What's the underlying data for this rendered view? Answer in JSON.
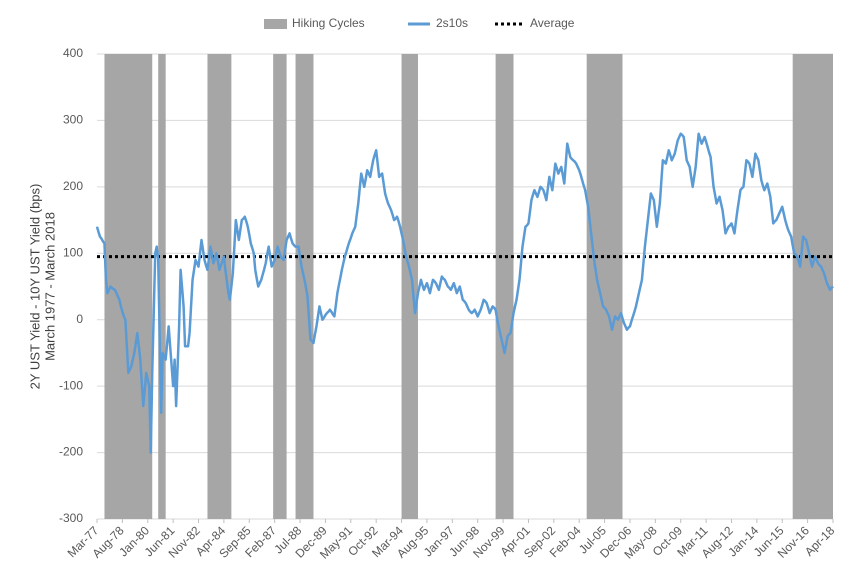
{
  "chart_data": {
    "type": "line",
    "ylabel": [
      "2Y UST Yield - 10Y UST Yield (bps)",
      "March 1977 - March 2018"
    ],
    "categories": [
      "Mar-77",
      null,
      null,
      null,
      null,
      null,
      null,
      null,
      null,
      null,
      null,
      null,
      null,
      null,
      null,
      null,
      null,
      "Aug-78",
      null,
      null,
      null,
      null,
      null,
      null,
      null,
      null,
      null,
      null,
      null,
      null,
      null,
      null,
      null,
      null,
      "Jan-80",
      null,
      null,
      null,
      null,
      null,
      null,
      null,
      null,
      null,
      null,
      null,
      null,
      null,
      null,
      null,
      null,
      "Jun-81",
      null,
      null,
      null,
      null,
      null,
      null,
      null,
      null,
      null,
      null,
      null,
      null,
      null,
      null,
      null,
      null,
      "Nov-82",
      null,
      null,
      null,
      null,
      null,
      null,
      null,
      null,
      null,
      null,
      null,
      null,
      null,
      null,
      null,
      null,
      "Apr-84",
      null,
      null,
      null,
      null,
      null,
      null,
      null,
      null,
      null,
      null,
      null,
      null,
      null,
      null,
      null,
      null,
      "Sep-85",
      null,
      null,
      null,
      null,
      null,
      null,
      null,
      null,
      null,
      null,
      null,
      null,
      null,
      null,
      null,
      null,
      "Feb-87",
      null,
      null,
      null,
      null,
      null,
      null,
      null,
      null,
      null,
      null,
      null,
      null,
      null,
      null,
      null,
      null,
      "Jul-88",
      null,
      null,
      null,
      null,
      null,
      null,
      null,
      null,
      null,
      null,
      null,
      null,
      null,
      null,
      null,
      null,
      "Dec-89",
      null,
      null,
      null,
      null,
      null,
      null,
      null,
      null,
      null,
      null,
      null,
      null,
      null,
      null,
      null,
      null,
      "May-91",
      null,
      null,
      null,
      null,
      null,
      null,
      null,
      null,
      null,
      null,
      null,
      null,
      null,
      null,
      null,
      null,
      "Oct-92",
      null,
      null,
      null,
      null,
      null,
      null,
      null,
      null,
      null,
      null,
      null,
      null,
      null,
      null,
      null,
      null,
      "Mar-94",
      null,
      null,
      null,
      null,
      null,
      null,
      null,
      null,
      null,
      null,
      null,
      null,
      null,
      null,
      null,
      null,
      "Aug-95",
      null,
      null,
      null,
      null,
      null,
      null,
      null,
      null,
      null,
      null,
      null,
      null,
      null,
      null,
      null,
      null,
      "Jan-97",
      null,
      null,
      null,
      null,
      null,
      null,
      null,
      null,
      null,
      null,
      null,
      null,
      null,
      null,
      null,
      null,
      "Jun-98",
      null,
      null,
      null,
      null,
      null,
      null,
      null,
      null,
      null,
      null,
      null,
      null,
      null,
      null,
      null,
      null,
      "Nov-99",
      null,
      null,
      null,
      null,
      null,
      null,
      null,
      null,
      null,
      null,
      null,
      null,
      null,
      null,
      null,
      null,
      "Apr-01",
      null,
      null,
      null,
      null,
      null,
      null,
      null,
      null,
      null,
      null,
      null,
      null,
      null,
      null,
      null,
      null,
      "Sep-02",
      null,
      null,
      null,
      null,
      null,
      null,
      null,
      null,
      null,
      null,
      null,
      null,
      null,
      null,
      null,
      null,
      "Feb-04",
      null,
      null,
      null,
      null,
      null,
      null,
      null,
      null,
      null,
      null,
      null,
      null,
      null,
      null,
      null,
      null,
      "Jul-05",
      null,
      null,
      null,
      null,
      null,
      null,
      null,
      null,
      null,
      null,
      null,
      null,
      null,
      null,
      null,
      null,
      "Dec-06",
      null,
      null,
      null,
      null,
      null,
      null,
      null,
      null,
      null,
      null,
      null,
      null,
      null,
      null,
      null,
      null,
      "May-08",
      null,
      null,
      null,
      null,
      null,
      null,
      null,
      null,
      null,
      null,
      null,
      null,
      null,
      null,
      null,
      null,
      "Oct-09",
      null,
      null,
      null,
      null,
      null,
      null,
      null,
      null,
      null,
      null,
      null,
      null,
      null,
      null,
      null,
      null,
      "Mar-11",
      null,
      null,
      null,
      null,
      null,
      null,
      null,
      null,
      null,
      null,
      null,
      null,
      null,
      null,
      null,
      null,
      "Aug-12",
      null,
      null,
      null,
      null,
      null,
      null,
      null,
      null,
      null,
      null,
      null,
      null,
      null,
      null,
      null,
      null,
      "Jan-14",
      null,
      null,
      null,
      null,
      null,
      null,
      null,
      null,
      null,
      null,
      null,
      null,
      null,
      null,
      null,
      null,
      "Jun-15",
      null,
      null,
      null,
      null,
      null,
      null,
      null,
      null,
      null,
      null,
      null,
      null,
      null,
      null,
      null,
      null,
      "Nov-16",
      null,
      null,
      null,
      null,
      null,
      null,
      null,
      null,
      null,
      null,
      null,
      null,
      null,
      null,
      null,
      null,
      "Apr-18"
    ],
    "series": [
      {
        "name": "2s10s",
        "color": "#5b9bd5",
        "values": [
          140,
          132,
          125,
          122,
          118,
          115,
          60,
          40,
          45,
          50,
          48,
          46,
          45,
          40,
          35,
          30,
          20,
          12,
          5,
          0,
          -40,
          -80,
          -75,
          -70,
          -60,
          -50,
          -35,
          -20,
          -40,
          -60,
          -95,
          -130,
          -105,
          -80,
          -90,
          -100,
          -200,
          -80,
          10,
          100,
          110,
          90,
          -25,
          -140,
          -50,
          -55,
          -60,
          -35,
          -10,
          -40,
          -70,
          -100,
          -60,
          -130,
          -70,
          -10,
          75,
          48,
          20,
          -40,
          -40,
          -40,
          -20,
          20,
          60,
          75,
          90,
          85,
          80,
          100,
          120,
          105,
          90,
          82,
          75,
          92,
          110,
          98,
          85,
          92,
          100,
          88,
          75,
          82,
          88,
          95,
          75,
          58,
          40,
          30,
          50,
          70,
          110,
          150,
          135,
          120,
          135,
          150,
          152,
          155,
          148,
          140,
          128,
          115,
          108,
          100,
          75,
          62,
          50,
          55,
          60,
          68,
          76,
          85,
          98,
          110,
          95,
          80,
          85,
          90,
          100,
          110,
          102,
          95,
          92,
          90,
          105,
          120,
          125,
          130,
          122,
          115,
          112,
          110,
          110,
          110,
          95,
          80,
          70,
          60,
          48,
          35,
          2,
          -30,
          -32,
          -35,
          -22,
          -10,
          5,
          20,
          10,
          0,
          3,
          7,
          10,
          12,
          15,
          12,
          8,
          5,
          22,
          40,
          52,
          63,
          75,
          85,
          95,
          102,
          110,
          117,
          123,
          130,
          135,
          140,
          158,
          175,
          198,
          220,
          210,
          200,
          212,
          225,
          220,
          215,
          228,
          240,
          248,
          255,
          235,
          215,
          218,
          220,
          205,
          190,
          182,
          175,
          170,
          165,
          158,
          150,
          152,
          155,
          148,
          140,
          130,
          120,
          108,
          95,
          88,
          80,
          70,
          60,
          35,
          10,
          25,
          40,
          50,
          60,
          52,
          45,
          50,
          55,
          48,
          40,
          50,
          60,
          58,
          55,
          50,
          45,
          55,
          65,
          62,
          60,
          55,
          50,
          48,
          45,
          50,
          55,
          48,
          40,
          45,
          50,
          40,
          30,
          28,
          25,
          20,
          15,
          12,
          10,
          12,
          15,
          10,
          5,
          10,
          15,
          22,
          30,
          28,
          25,
          18,
          10,
          15,
          20,
          18,
          15,
          2,
          -10,
          -20,
          -30,
          -40,
          -50,
          -38,
          -25,
          -22,
          -20,
          -5,
          10,
          20,
          30,
          45,
          60,
          85,
          110,
          125,
          140,
          142,
          145,
          162,
          180,
          188,
          195,
          190,
          185,
          192,
          200,
          198,
          195,
          188,
          180,
          198,
          215,
          205,
          195,
          215,
          235,
          228,
          220,
          225,
          230,
          218,
          205,
          235,
          265,
          255,
          245,
          242,
          240,
          238,
          235,
          230,
          225,
          218,
          210,
          202,
          195,
          182,
          170,
          150,
          130,
          110,
          90,
          75,
          60,
          50,
          40,
          30,
          20,
          18,
          15,
          10,
          5,
          -5,
          -15,
          -5,
          5,
          2,
          0,
          5,
          10,
          2,
          -5,
          -10,
          -15,
          -12,
          -10,
          -2,
          5,
          12,
          20,
          30,
          40,
          50,
          60,
          85,
          110,
          130,
          150,
          170,
          190,
          185,
          180,
          160,
          140,
          158,
          175,
          208,
          240,
          238,
          235,
          245,
          255,
          248,
          240,
          245,
          250,
          260,
          270,
          275,
          280,
          278,
          275,
          258,
          240,
          235,
          230,
          215,
          200,
          215,
          230,
          255,
          280,
          272,
          265,
          270,
          275,
          268,
          260,
          252,
          245,
          222,
          200,
          188,
          175,
          180,
          185,
          175,
          165,
          148,
          130,
          135,
          140,
          142,
          145,
          138,
          130,
          148,
          165,
          180,
          195,
          198,
          200,
          220,
          240,
          238,
          235,
          225,
          215,
          232,
          250,
          245,
          240,
          225,
          210,
          202,
          195,
          200,
          205,
          195,
          185,
          165,
          145,
          148,
          150,
          155,
          160,
          165,
          170,
          160,
          150,
          142,
          135,
          130,
          125,
          112,
          100,
          98,
          95,
          88,
          80,
          102,
          125,
          122,
          120,
          110,
          100,
          90,
          80,
          88,
          95,
          90,
          85,
          82,
          80,
          75,
          70,
          62,
          55,
          50,
          45,
          48,
          50
        ]
      }
    ],
    "hiking_cycles": {
      "name": "Hiking Cycles",
      "color": "#a6a6a6",
      "ranges": [
        [
          5,
          37
        ],
        [
          41,
          46
        ],
        [
          74,
          90
        ],
        [
          118,
          127
        ],
        [
          133,
          145
        ],
        [
          204,
          215
        ],
        [
          267,
          279
        ],
        [
          328,
          352
        ],
        [
          466,
          493
        ]
      ]
    },
    "average": {
      "name": "Average",
      "value": 95,
      "color": "#000000"
    },
    "ylim": [
      -300,
      400
    ],
    "yticks": [
      -300,
      -200,
      -100,
      0,
      100,
      200,
      300,
      400
    ],
    "grid": true,
    "legend": "top"
  }
}
